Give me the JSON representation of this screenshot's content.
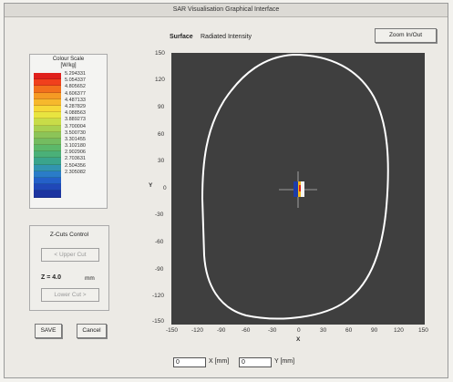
{
  "window": {
    "title": "SAR Visualisation Graphical Interface"
  },
  "header": {
    "surface_label": "Surface",
    "surface_value": "Radiated Intensity",
    "zoom_button": "Zoom In/Out"
  },
  "color_scale": {
    "title": "Colour Scale",
    "unit": "[W/kg]",
    "swatch_colors": [
      "#e0201c",
      "#f0401c",
      "#f2701c",
      "#f59a24",
      "#f6b82c",
      "#f6d838",
      "#e8e440",
      "#c8dc48",
      "#a8d050",
      "#8cc458",
      "#74bc60",
      "#5cb86a",
      "#4ab078",
      "#3aa48c",
      "#3294b0",
      "#2a7cc8",
      "#2460c8",
      "#2048b8",
      "#1c34a0"
    ],
    "values": [
      "5.294331",
      "5.054337",
      "4.805652",
      "4.606377",
      "4.487133",
      "4.287829",
      "4.088563",
      "3.889273",
      "3.700004",
      "3.500730",
      "3.301455",
      "3.102180",
      "2.902906",
      "2.703631",
      "2.504356",
      "2.305082"
    ]
  },
  "zcut": {
    "title": "Z-Cuts Control",
    "upper_button": "< Upper Cut",
    "z_label": "Z = 4.0",
    "z_unit": "mm",
    "lower_button": "Lower Cut >"
  },
  "buttons": {
    "save": "SAVE",
    "cancel": "Cancel"
  },
  "plot": {
    "x_ticks": [
      "-150",
      "-120",
      "-90",
      "-60",
      "-30",
      "0",
      "30",
      "60",
      "90",
      "120",
      "150"
    ],
    "y_ticks": [
      "150",
      "120",
      "90",
      "60",
      "30",
      "0",
      "-30",
      "-60",
      "-90",
      "-120",
      "-150"
    ],
    "x_axis_label": "X",
    "y_axis_label": "Y"
  },
  "coords": {
    "x_value": "0",
    "x_label": "X [mm]",
    "y_value": "0",
    "y_label": "Y [mm]"
  },
  "colors": {
    "plot_background": "#3f3f3f",
    "contour": "#ffffff"
  }
}
